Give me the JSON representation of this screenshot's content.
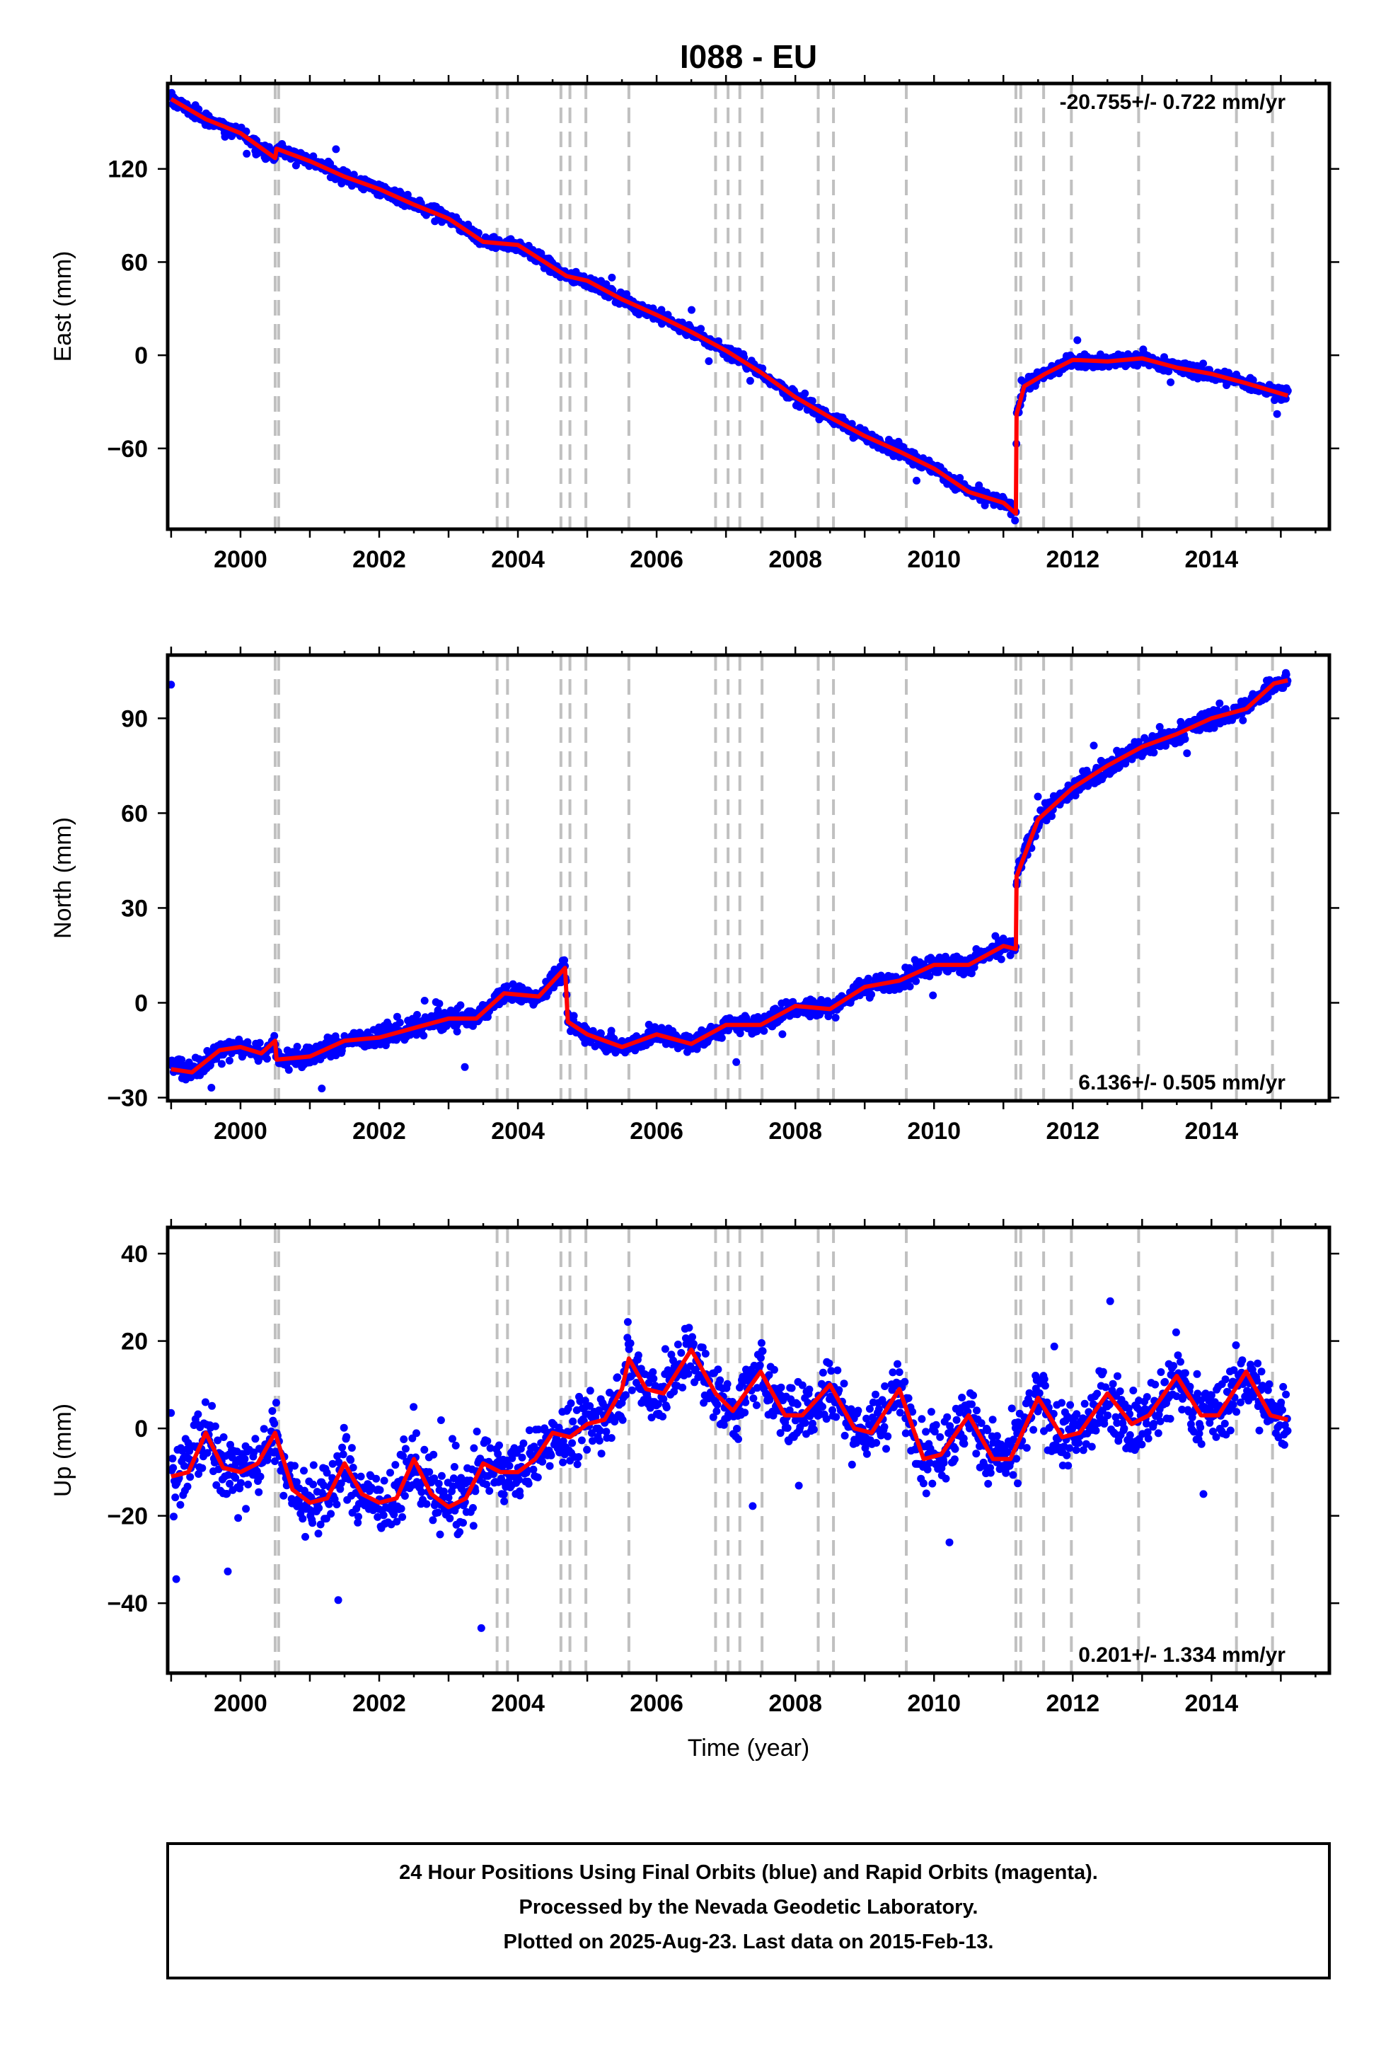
{
  "title": "I088 - EU",
  "xlabel": "Time (year)",
  "footer": {
    "line1": "24 Hour Positions Using Final Orbits (blue) and Rapid Orbits (magenta).",
    "line2": "Processed by the Nevada Geodetic Laboratory.",
    "line3": "Plotted on 2025-Aug-23. Last data on 2015-Feb-13."
  },
  "colors": {
    "points": "#0000ff",
    "model": "#ff0000",
    "event_lines": "#c0c0c0",
    "frame": "#000000"
  },
  "chart_data": [
    {
      "type": "scatter",
      "ylabel": "East (mm)",
      "rate_label": "-20.755+/- 0.722 mm/yr",
      "rate_position": "top-right",
      "xlim": [
        1998.95,
        2015.7
      ],
      "ylim": [
        -112,
        175
      ],
      "x_ticks": [
        "2000",
        "2002",
        "2004",
        "2006",
        "2008",
        "2010",
        "2012",
        "2014"
      ],
      "y_ticks": [
        "120",
        "60",
        "0",
        "−60"
      ],
      "y_tick_values": [
        120,
        60,
        0,
        -60
      ],
      "events": [
        2000.5,
        2000.55,
        2003.7,
        2003.85,
        2004.62,
        2004.75,
        2004.98,
        2005.6,
        2006.85,
        2007.03,
        2007.2,
        2007.52,
        2008.33,
        2008.55,
        2009.6,
        2011.18,
        2011.25,
        2011.58,
        2011.98,
        2012.95,
        2014.36,
        2014.88
      ],
      "model": [
        {
          "x": 1999.0,
          "y": 165
        },
        {
          "x": 1999.5,
          "y": 152
        },
        {
          "x": 2000.0,
          "y": 143
        },
        {
          "x": 2000.5,
          "y": 127
        },
        {
          "x": 2000.52,
          "y": 133
        },
        {
          "x": 2001.0,
          "y": 125
        },
        {
          "x": 2001.5,
          "y": 115
        },
        {
          "x": 2002.0,
          "y": 107
        },
        {
          "x": 2002.5,
          "y": 97
        },
        {
          "x": 2003.0,
          "y": 88
        },
        {
          "x": 2003.5,
          "y": 73
        },
        {
          "x": 2004.0,
          "y": 71
        },
        {
          "x": 2004.7,
          "y": 51
        },
        {
          "x": 2005.0,
          "y": 48
        },
        {
          "x": 2005.5,
          "y": 36
        },
        {
          "x": 2006.0,
          "y": 26
        },
        {
          "x": 2006.5,
          "y": 15
        },
        {
          "x": 2007.0,
          "y": 3
        },
        {
          "x": 2007.5,
          "y": -11
        },
        {
          "x": 2008.0,
          "y": -27
        },
        {
          "x": 2008.5,
          "y": -40
        },
        {
          "x": 2009.0,
          "y": -52
        },
        {
          "x": 2009.5,
          "y": -62
        },
        {
          "x": 2010.0,
          "y": -73
        },
        {
          "x": 2010.5,
          "y": -88
        },
        {
          "x": 2011.0,
          "y": -95
        },
        {
          "x": 2011.18,
          "y": -102
        },
        {
          "x": 2011.19,
          "y": -38
        },
        {
          "x": 2011.3,
          "y": -20
        },
        {
          "x": 2011.6,
          "y": -12
        },
        {
          "x": 2012.0,
          "y": -3
        },
        {
          "x": 2012.5,
          "y": -4
        },
        {
          "x": 2013.0,
          "y": -2
        },
        {
          "x": 2013.5,
          "y": -8
        },
        {
          "x": 2014.0,
          "y": -12
        },
        {
          "x": 2014.5,
          "y": -18
        },
        {
          "x": 2015.1,
          "y": -26
        }
      ],
      "noise_mm": 3.5
    },
    {
      "type": "scatter",
      "ylabel": "North (mm)",
      "rate_label": "6.136+/- 0.505 mm/yr",
      "rate_position": "bottom-right",
      "xlim": [
        1998.95,
        2015.7
      ],
      "ylim": [
        -31,
        110
      ],
      "x_ticks": [
        "2000",
        "2002",
        "2004",
        "2006",
        "2008",
        "2010",
        "2012",
        "2014"
      ],
      "y_ticks": [
        "90",
        "60",
        "30",
        "0",
        "−30"
      ],
      "y_tick_values": [
        90,
        60,
        30,
        0,
        -30
      ],
      "events": [
        2000.5,
        2000.55,
        2003.7,
        2003.85,
        2004.62,
        2004.75,
        2004.98,
        2005.6,
        2006.85,
        2007.03,
        2007.2,
        2007.52,
        2008.33,
        2008.55,
        2009.6,
        2011.18,
        2011.25,
        2011.58,
        2011.98,
        2012.95,
        2014.36,
        2014.88
      ],
      "model": [
        {
          "x": 1999.0,
          "y": -21
        },
        {
          "x": 1999.3,
          "y": -22
        },
        {
          "x": 1999.7,
          "y": -15
        },
        {
          "x": 2000.0,
          "y": -14
        },
        {
          "x": 2000.3,
          "y": -16
        },
        {
          "x": 2000.5,
          "y": -12
        },
        {
          "x": 2000.52,
          "y": -18
        },
        {
          "x": 2001.0,
          "y": -17
        },
        {
          "x": 2001.5,
          "y": -12
        },
        {
          "x": 2002.0,
          "y": -11
        },
        {
          "x": 2002.5,
          "y": -8
        },
        {
          "x": 2003.0,
          "y": -5
        },
        {
          "x": 2003.4,
          "y": -5
        },
        {
          "x": 2003.8,
          "y": 3
        },
        {
          "x": 2004.3,
          "y": 2
        },
        {
          "x": 2004.68,
          "y": 11
        },
        {
          "x": 2004.72,
          "y": -6
        },
        {
          "x": 2005.0,
          "y": -10
        },
        {
          "x": 2005.5,
          "y": -14
        },
        {
          "x": 2006.0,
          "y": -10
        },
        {
          "x": 2006.5,
          "y": -13
        },
        {
          "x": 2007.0,
          "y": -7
        },
        {
          "x": 2007.5,
          "y": -7
        },
        {
          "x": 2008.0,
          "y": -1
        },
        {
          "x": 2008.5,
          "y": -2
        },
        {
          "x": 2009.0,
          "y": 5
        },
        {
          "x": 2009.5,
          "y": 7
        },
        {
          "x": 2010.0,
          "y": 12
        },
        {
          "x": 2010.5,
          "y": 12
        },
        {
          "x": 2011.0,
          "y": 18
        },
        {
          "x": 2011.18,
          "y": 17
        },
        {
          "x": 2011.19,
          "y": 40
        },
        {
          "x": 2011.5,
          "y": 58
        },
        {
          "x": 2012.0,
          "y": 68
        },
        {
          "x": 2012.5,
          "y": 75
        },
        {
          "x": 2013.0,
          "y": 81
        },
        {
          "x": 2013.5,
          "y": 85
        },
        {
          "x": 2014.0,
          "y": 90
        },
        {
          "x": 2014.5,
          "y": 93
        },
        {
          "x": 2014.9,
          "y": 101
        },
        {
          "x": 2015.1,
          "y": 102
        }
      ],
      "noise_mm": 2.5
    },
    {
      "type": "scatter",
      "ylabel": "Up (mm)",
      "rate_label": "0.201+/- 1.334 mm/yr",
      "rate_position": "bottom-right",
      "xlim": [
        1998.95,
        2015.7
      ],
      "ylim": [
        -56,
        46
      ],
      "x_ticks": [
        "2000",
        "2002",
        "2004",
        "2006",
        "2008",
        "2010",
        "2012",
        "2014"
      ],
      "y_ticks": [
        "40",
        "20",
        "0",
        "−20",
        "−40"
      ],
      "y_tick_values": [
        40,
        20,
        0,
        -20,
        -40
      ],
      "events": [
        2000.5,
        2000.55,
        2003.7,
        2003.85,
        2004.62,
        2004.75,
        2004.98,
        2005.6,
        2006.85,
        2007.03,
        2007.2,
        2007.52,
        2008.33,
        2008.55,
        2009.6,
        2011.18,
        2011.25,
        2011.58,
        2011.98,
        2012.95,
        2014.36,
        2014.88
      ],
      "model": [
        {
          "x": 1999.0,
          "y": -11
        },
        {
          "x": 1999.25,
          "y": -10
        },
        {
          "x": 1999.5,
          "y": -1
        },
        {
          "x": 1999.75,
          "y": -9
        },
        {
          "x": 2000.0,
          "y": -10
        },
        {
          "x": 2000.25,
          "y": -8
        },
        {
          "x": 2000.5,
          "y": -1
        },
        {
          "x": 2000.75,
          "y": -14
        },
        {
          "x": 2001.0,
          "y": -17
        },
        {
          "x": 2001.25,
          "y": -16
        },
        {
          "x": 2001.5,
          "y": -8
        },
        {
          "x": 2001.75,
          "y": -15
        },
        {
          "x": 2002.0,
          "y": -17
        },
        {
          "x": 2002.25,
          "y": -16
        },
        {
          "x": 2002.5,
          "y": -7
        },
        {
          "x": 2002.75,
          "y": -15
        },
        {
          "x": 2003.0,
          "y": -18
        },
        {
          "x": 2003.25,
          "y": -16
        },
        {
          "x": 2003.5,
          "y": -8
        },
        {
          "x": 2003.75,
          "y": -10
        },
        {
          "x": 2004.0,
          "y": -10
        },
        {
          "x": 2004.25,
          "y": -7
        },
        {
          "x": 2004.5,
          "y": -1
        },
        {
          "x": 2004.75,
          "y": -2
        },
        {
          "x": 2005.0,
          "y": 1
        },
        {
          "x": 2005.25,
          "y": 2
        },
        {
          "x": 2005.5,
          "y": 9
        },
        {
          "x": 2005.6,
          "y": 16
        },
        {
          "x": 2005.85,
          "y": 9
        },
        {
          "x": 2006.1,
          "y": 8
        },
        {
          "x": 2006.5,
          "y": 18
        },
        {
          "x": 2006.85,
          "y": 8
        },
        {
          "x": 2007.1,
          "y": 4
        },
        {
          "x": 2007.5,
          "y": 13
        },
        {
          "x": 2007.85,
          "y": 3
        },
        {
          "x": 2008.1,
          "y": 3
        },
        {
          "x": 2008.5,
          "y": 10
        },
        {
          "x": 2008.85,
          "y": 0
        },
        {
          "x": 2009.1,
          "y": -1
        },
        {
          "x": 2009.5,
          "y": 9
        },
        {
          "x": 2009.85,
          "y": -7
        },
        {
          "x": 2010.1,
          "y": -6
        },
        {
          "x": 2010.5,
          "y": 3
        },
        {
          "x": 2010.85,
          "y": -7
        },
        {
          "x": 2011.1,
          "y": -7
        },
        {
          "x": 2011.5,
          "y": 7
        },
        {
          "x": 2011.85,
          "y": -2
        },
        {
          "x": 2012.1,
          "y": -1
        },
        {
          "x": 2012.5,
          "y": 8
        },
        {
          "x": 2012.85,
          "y": 1
        },
        {
          "x": 2013.1,
          "y": 3
        },
        {
          "x": 2013.5,
          "y": 12
        },
        {
          "x": 2013.85,
          "y": 3
        },
        {
          "x": 2014.1,
          "y": 3
        },
        {
          "x": 2014.5,
          "y": 13
        },
        {
          "x": 2014.85,
          "y": 3
        },
        {
          "x": 2015.1,
          "y": 2
        }
      ],
      "noise_mm": 6
    }
  ]
}
